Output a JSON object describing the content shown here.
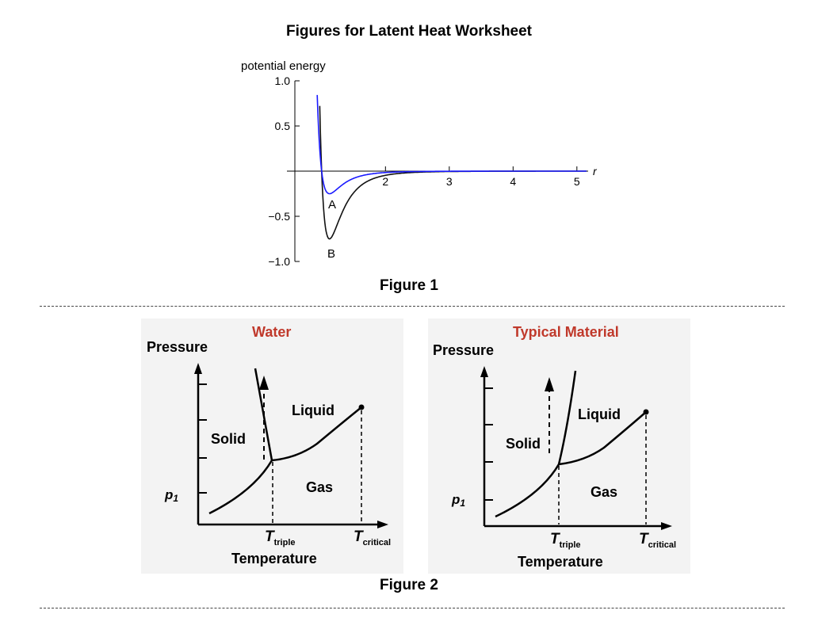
{
  "title": "Figures for Latent Heat Worksheet",
  "figure1": {
    "caption": "Figure 1",
    "ylabel": "potential energy",
    "xlabel": "r",
    "yticks": [
      "1.0",
      "0.5",
      "−0.5",
      "−1.0"
    ],
    "xticks": [
      "2",
      "3",
      "4",
      "5"
    ],
    "curve_labels": {
      "a": "A",
      "b": "B"
    }
  },
  "figure2": {
    "caption": "Figure 2",
    "water": {
      "title": "Water",
      "ylabel": "Pressure",
      "xlabel": "Temperature",
      "solid": "Solid",
      "liquid": "Liquid",
      "gas": "Gas",
      "p1": "p",
      "p1_sub": "1",
      "ttriple": "T",
      "ttriple_sub": "triple",
      "tcritical": "T",
      "tcritical_sub": "critical"
    },
    "typical": {
      "title": "Typical Material",
      "ylabel": "Pressure",
      "xlabel": "Temperature",
      "solid": "Solid",
      "liquid": "Liquid",
      "gas": "Gas",
      "p1": "p",
      "p1_sub": "1",
      "ttriple": "T",
      "ttriple_sub": "triple",
      "tcritical": "T",
      "tcritical_sub": "critical"
    }
  },
  "colors": {
    "title_red": "#c0392b",
    "curve_a": "#1a1aff",
    "curve_b": "#111111",
    "panel_bg": "#f3f3f3"
  },
  "chart_data": {
    "type": "line",
    "title": "",
    "xlabel": "r",
    "ylabel": "potential energy",
    "xlim": [
      0.55,
      5.2
    ],
    "ylim": [
      -1.0,
      1.0
    ],
    "xticks": [
      2,
      3,
      4,
      5
    ],
    "yticks": [
      1.0,
      0.5,
      -0.5,
      -1.0
    ],
    "series": [
      {
        "name": "A",
        "color": "#1a1aff",
        "min_point": [
          1.12,
          -0.25
        ]
      },
      {
        "name": "B",
        "color": "#111111",
        "min_point": [
          1.12,
          -0.75
        ]
      }
    ]
  }
}
